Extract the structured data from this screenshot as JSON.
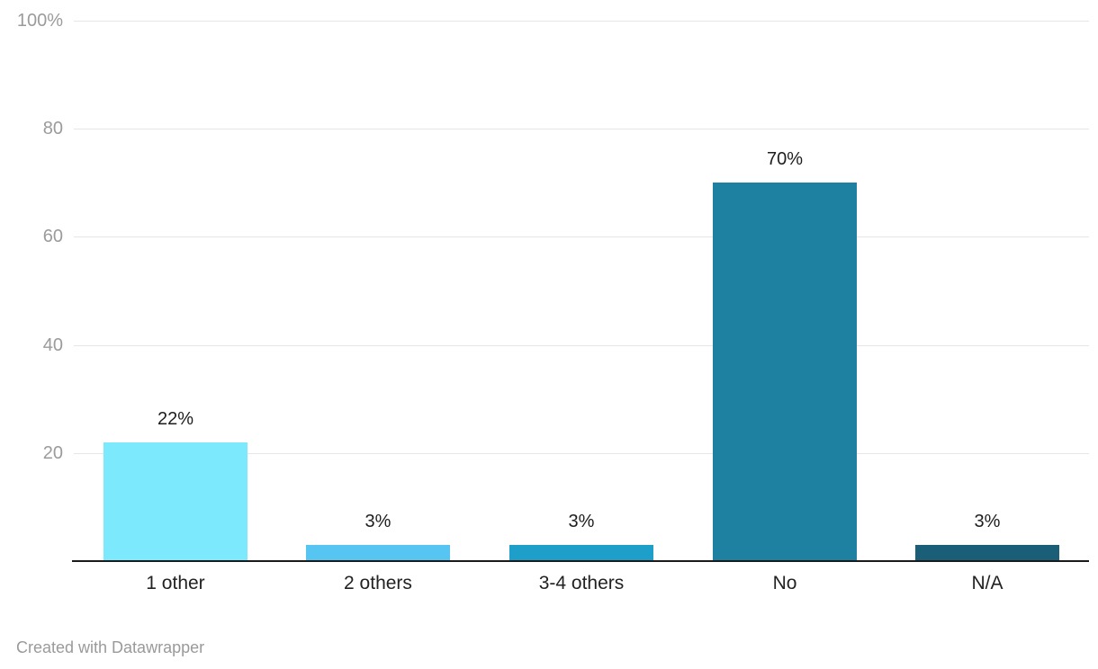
{
  "chart_data": {
    "type": "bar",
    "title": "",
    "xlabel": "",
    "ylabel": "",
    "legend": "none",
    "unit": "%",
    "categories": [
      "1 other",
      "2 others",
      "3-4 others",
      "No",
      "N/A"
    ],
    "values": [
      22,
      3,
      3,
      70,
      3
    ],
    "value_labels": [
      "22%",
      "3%",
      "3%",
      "70%",
      "3%"
    ],
    "bar_colors": [
      "#7de9fd",
      "#56c5f2",
      "#1e9fca",
      "#1f81a1",
      "#1a5e78"
    ],
    "y_axis": {
      "range": [
        0,
        100
      ],
      "ticks": [
        100,
        80,
        60,
        40,
        20
      ],
      "tick_labels": [
        "100%",
        "80",
        "60",
        "40",
        "20"
      ],
      "grid": true
    }
  },
  "footer": {
    "credit": "Created with Datawrapper"
  },
  "colors": {
    "background": "#ffffff",
    "grid": "#e6e6e6",
    "axis_line": "#1a1a1a",
    "tick_label": "#9b9b9b",
    "value_label": "#1d1d1d",
    "category_label": "#222222",
    "credit": "#9a9a9a"
  }
}
